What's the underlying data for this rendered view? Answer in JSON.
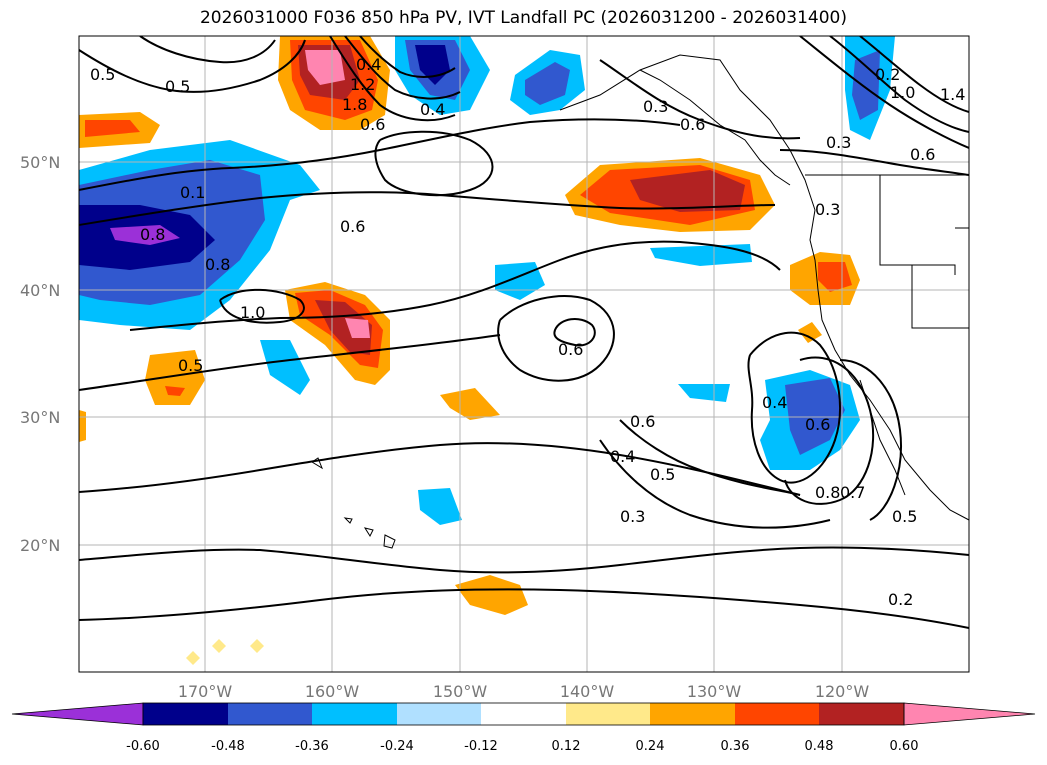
{
  "title": "2026031000 F036 850 hPa PV, IVT Landfall PC (2026031200 - 2026031400)",
  "lat_ticks": [
    "50°N",
    "40°N",
    "30°N",
    "20°N"
  ],
  "lon_ticks": [
    "170°W",
    "160°W",
    "150°W",
    "140°W",
    "130°W",
    "120°W"
  ],
  "contour_labels": [
    "0.5",
    "0.5",
    "0.4",
    "1.2",
    "1.8",
    "0.6",
    "0.4",
    "0.3",
    "0.6",
    "0.2",
    "1.0",
    "1.4",
    "0.3",
    "0.6",
    "0.3",
    "0.1",
    "0.8",
    "0.6",
    "0.8",
    "1.0",
    "0.6",
    "0.5",
    "0.6",
    "0.4",
    "0.4",
    "0.6",
    "0.5",
    "0.8",
    "0.7",
    "0.3",
    "0.5",
    "0.2"
  ],
  "colorbar": {
    "labels": [
      "-0.60",
      "-0.48",
      "-0.36",
      "-0.24",
      "-0.12",
      "0.12",
      "0.24",
      "0.36",
      "0.48",
      "0.60"
    ],
    "colors": [
      "#9b30d8",
      "#00008b",
      "#3158cf",
      "#00bfff",
      "#b0e0ff",
      "#ffffff",
      "#ffe98a",
      "#ffa500",
      "#ff4500",
      "#b22222",
      "#ff85b0"
    ]
  }
}
